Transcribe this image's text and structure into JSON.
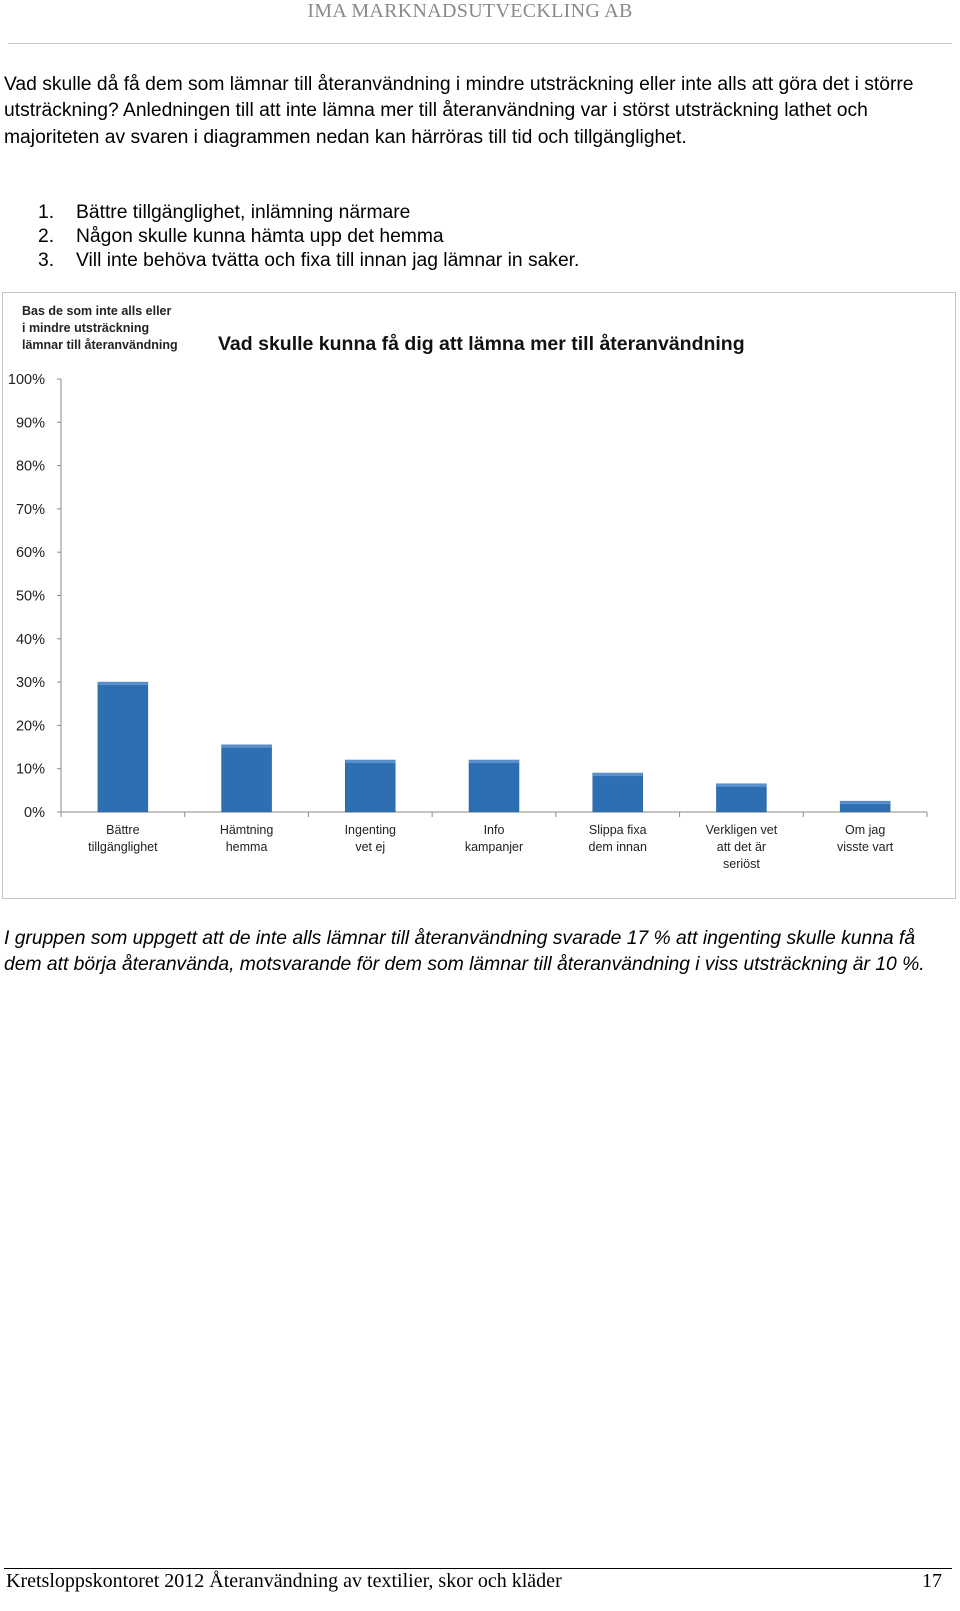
{
  "header": {
    "company": "IMA MARKNADSUTVECKLING AB"
  },
  "intro": {
    "text": "Vad skulle då få dem som lämnar till återanvändning i mindre utsträckning eller inte alls att göra det i större utsträckning? Anledningen till att inte lämna mer till återanvändning var i störst utsträckning lathet och majoriteten av svaren i diagrammen nedan kan härröras till tid och tillgänglighet."
  },
  "reasons": [
    {
      "num": "1.",
      "text": "Bättre tillgänglighet, inlämning närmare"
    },
    {
      "num": "2.",
      "text": "Någon skulle kunna hämta upp det hemma"
    },
    {
      "num": "3.",
      "text": "Vill inte behöva tvätta och fixa till innan jag lämnar in saker."
    }
  ],
  "chart_data": {
    "type": "bar",
    "title": "Vad skulle kunna få dig att lämna mer till återanvändning",
    "subtitle": [
      "Bas de som inte alls eller",
      "i mindre utsträckning",
      "lämnar till återanvändning"
    ],
    "categories": [
      [
        "Bättre",
        "tillgänglighet"
      ],
      [
        "Hämtning",
        "hemma"
      ],
      [
        "Ingenting",
        "vet ej"
      ],
      [
        "Info",
        "kampanjer"
      ],
      [
        "Slippa fixa",
        "dem innan"
      ],
      [
        "Verkligen vet",
        "att det är",
        "seriöst"
      ],
      [
        "Om jag",
        "visste vart"
      ]
    ],
    "values": [
      30,
      15.5,
      12,
      12,
      9,
      6.5,
      2.5
    ],
    "ylim": [
      0,
      100
    ],
    "yticks": [
      "0%",
      "10%",
      "20%",
      "30%",
      "40%",
      "50%",
      "60%",
      "70%",
      "80%",
      "90%",
      "100%"
    ],
    "bar_color": "#2e6fb3",
    "grid": false,
    "legend": "none"
  },
  "conclusion": {
    "text": "I gruppen som uppgett att de inte alls lämnar till återanvändning svarade 17 % att ingenting skulle kunna få dem att börja återanvända, motsvarande för dem som lämnar till återanvändning i viss utsträckning är 10 %."
  },
  "footer": {
    "left": "Kretsloppskontoret 2012 Återanvändning av textilier, skor och kläder",
    "page": "17"
  }
}
